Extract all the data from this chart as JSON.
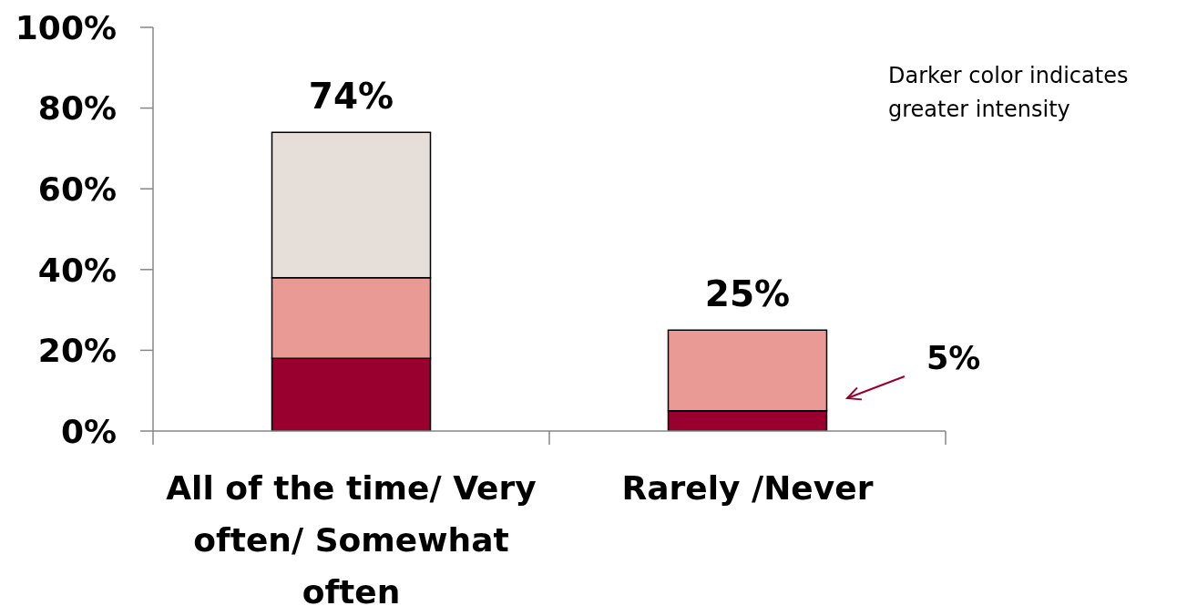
{
  "chart_data": {
    "type": "bar",
    "stacked": true,
    "categories": [
      "All of the time/ Very often/ Somewhat often",
      "Rarely /Never"
    ],
    "series": [
      {
        "color": "#990030",
        "values": [
          18,
          5
        ]
      },
      {
        "color": "#e99a94",
        "values": [
          20,
          20
        ]
      },
      {
        "color": "#e6dfd9",
        "values": [
          36,
          null
        ]
      }
    ],
    "ylim": [
      0,
      100
    ],
    "yticks": [
      {
        "value": 0,
        "label": "0%"
      },
      {
        "value": 20,
        "label": "20%"
      },
      {
        "value": 40,
        "label": "40%"
      },
      {
        "value": 60,
        "label": "60%"
      },
      {
        "value": 80,
        "label": "80%"
      },
      {
        "value": 100,
        "label": "100%"
      }
    ],
    "totals": [
      "74%",
      "25%"
    ],
    "annotations": [
      "Darker color indicates greater intensity",
      "5%"
    ]
  }
}
